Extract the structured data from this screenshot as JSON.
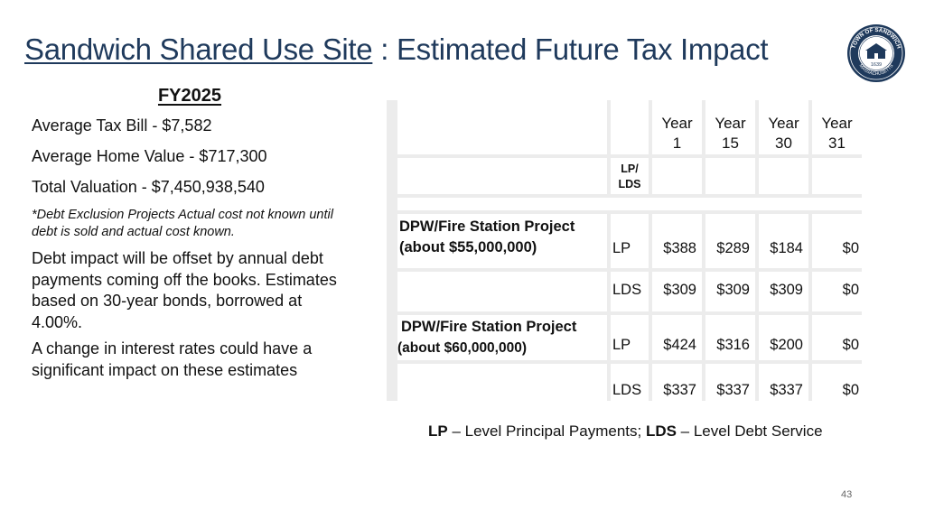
{
  "title": {
    "link_text": "Sandwich Shared Use Site",
    "rest": " : Estimated Future Tax Impact"
  },
  "seal": {
    "text_top": "TOWN OF SANDWICH",
    "text_bottom": "MASSACHUSETTS",
    "year": "1639",
    "color": "#1f3a5c"
  },
  "left": {
    "heading": "FY2025",
    "stats": [
      "Average Tax Bill  - $7,582",
      "Average Home Value - $717,300",
      "Total Valuation - $7,450,938,540"
    ],
    "note": "*Debt Exclusion Projects Actual cost not known until debt is sold and actual cost known.",
    "para1": "Debt impact will be offset by annual debt payments coming off the books. Estimates based on 30-year bonds, borrowed at 4.00%.",
    "para2": "A change in interest rates could have a significant impact on these estimates"
  },
  "table": {
    "year_headers": [
      {
        "top": "Year",
        "bottom": "1"
      },
      {
        "top": "Year",
        "bottom": "15"
      },
      {
        "top": "Year",
        "bottom": "30"
      },
      {
        "top": "Year",
        "bottom": "31"
      }
    ],
    "type_header": {
      "top": "LP/",
      "bottom": "LDS"
    },
    "projects": [
      {
        "name": "DPW/Fire Station Project",
        "cost": "(about $55,000,000)",
        "rows": [
          {
            "type": "LP",
            "values": [
              "$388",
              "$289",
              "$184",
              "$0"
            ]
          },
          {
            "type": "LDS",
            "values": [
              "$309",
              "$309",
              "$309",
              "$0"
            ]
          }
        ]
      },
      {
        "name": "DPW/Fire Station Project",
        "cost": "(about $60,000,000)",
        "rows": [
          {
            "type": "LP",
            "values": [
              "$424",
              "$316",
              "$200",
              "$0"
            ]
          },
          {
            "type": "LDS",
            "values": [
              "$337",
              "$337",
              "$337",
              "$0"
            ]
          }
        ]
      }
    ]
  },
  "legend": {
    "lp": "LP",
    "lp_desc": " – Level Principal Payments; ",
    "lds": "LDS",
    "lds_desc": " – Level Debt Service"
  },
  "page_number": "43"
}
